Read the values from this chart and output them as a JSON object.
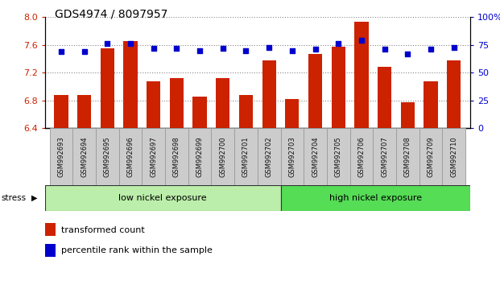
{
  "title": "GDS4974 / 8097957",
  "samples": [
    "GSM992693",
    "GSM992694",
    "GSM992695",
    "GSM992696",
    "GSM992697",
    "GSM992698",
    "GSM992699",
    "GSM992700",
    "GSM992701",
    "GSM992702",
    "GSM992703",
    "GSM992704",
    "GSM992705",
    "GSM992706",
    "GSM992707",
    "GSM992708",
    "GSM992709",
    "GSM992710"
  ],
  "bar_values": [
    6.88,
    6.88,
    7.55,
    7.65,
    7.08,
    7.12,
    6.85,
    7.12,
    6.88,
    7.38,
    6.82,
    7.47,
    7.57,
    7.93,
    7.28,
    6.78,
    7.08,
    7.38
  ],
  "dot_values": [
    69,
    69,
    76,
    76,
    72,
    72,
    70,
    72,
    70,
    73,
    70,
    71,
    76,
    79,
    71,
    67,
    71,
    73
  ],
  "ylim_left": [
    6.4,
    8.0
  ],
  "ylim_right": [
    0,
    100
  ],
  "yticks_left": [
    6.4,
    6.8,
    7.2,
    7.6,
    8.0
  ],
  "yticks_right": [
    0,
    25,
    50,
    75,
    100
  ],
  "bar_color": "#cc2200",
  "dot_color": "#0000cc",
  "num_low": 10,
  "group1_label": "low nickel exposure",
  "group2_label": "high nickel exposure",
  "group1_color": "#bbeeaa",
  "group2_color": "#55dd55",
  "stress_label": "stress",
  "legend_bar": "transformed count",
  "legend_dot": "percentile rank within the sample",
  "xtick_box_color": "#cccccc",
  "xtick_box_edge": "#999999"
}
